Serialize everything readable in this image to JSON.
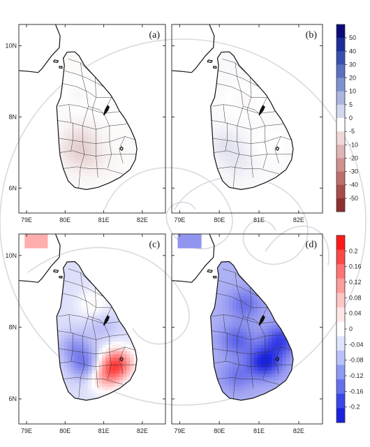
{
  "chart_data": [
    {
      "type": "heatmap",
      "panel_label": "(a)",
      "x_ticks": [
        "79E",
        "80E",
        "81E",
        "82E"
      ],
      "y_ticks": [
        "6N",
        "8N",
        "10N"
      ],
      "xlim": [
        78.8,
        82.6
      ],
      "ylim": [
        5.3,
        10.6
      ],
      "colorbar": "top",
      "pattern": [
        {
          "lon": 80.2,
          "lat": 7.0,
          "value": -6
        },
        {
          "lon": 80.4,
          "lat": 7.4,
          "value": -5
        },
        {
          "lon": 80.6,
          "lat": 6.8,
          "value": -5
        },
        {
          "lon": 80.3,
          "lat": 8.6,
          "value": 3
        },
        {
          "lon": 81.1,
          "lat": 8.2,
          "value": 2
        },
        {
          "lon": 80.0,
          "lat": 10.3,
          "value": -3
        }
      ]
    },
    {
      "type": "heatmap",
      "panel_label": "(b)",
      "x_ticks": [
        "79E",
        "80E",
        "81E",
        "82E"
      ],
      "y_ticks": [
        "6N",
        "8N",
        "10N"
      ],
      "xlim": [
        78.8,
        82.6
      ],
      "ylim": [
        5.3,
        10.6
      ],
      "colorbar": "top",
      "pattern": [
        {
          "lon": 80.1,
          "lat": 7.2,
          "value": 4
        },
        {
          "lon": 80.4,
          "lat": 6.7,
          "value": 3
        },
        {
          "lon": 80.6,
          "lat": 8.4,
          "value": -3
        },
        {
          "lon": 81.2,
          "lat": 7.2,
          "value": -2
        },
        {
          "lon": 79.8,
          "lat": 10.3,
          "value": 4
        }
      ]
    },
    {
      "type": "heatmap",
      "panel_label": "(c)",
      "x_ticks": [
        "79E",
        "80E",
        "81E",
        "82E"
      ],
      "y_ticks": [
        "6N",
        "8N",
        "10N"
      ],
      "xlim": [
        78.8,
        82.6
      ],
      "ylim": [
        5.3,
        10.6
      ],
      "colorbar": "bottom",
      "pattern": [
        {
          "lon": 81.3,
          "lat": 6.95,
          "value": 0.17
        },
        {
          "lon": 81.0,
          "lat": 6.6,
          "value": 0.1
        },
        {
          "lon": 80.5,
          "lat": 6.9,
          "value": -0.09
        },
        {
          "lon": 80.2,
          "lat": 7.4,
          "value": -0.06
        },
        {
          "lon": 80.7,
          "lat": 8.6,
          "value": 0.04
        },
        {
          "lon": 79.2,
          "lat": 10.4,
          "value": 0.09
        },
        {
          "lon": 80.9,
          "lat": 8.0,
          "value": -0.03
        }
      ]
    },
    {
      "type": "heatmap",
      "panel_label": "(d)",
      "x_ticks": [
        "79E",
        "80E",
        "81E",
        "82E"
      ],
      "y_ticks": [
        "6N",
        "8N",
        "10N"
      ],
      "xlim": [
        78.8,
        82.6
      ],
      "ylim": [
        5.3,
        10.6
      ],
      "colorbar": "bottom",
      "pattern": [
        {
          "lon": 81.1,
          "lat": 7.0,
          "value": -0.13
        },
        {
          "lon": 81.5,
          "lat": 7.6,
          "value": -0.1
        },
        {
          "lon": 80.4,
          "lat": 7.6,
          "value": -0.07
        },
        {
          "lon": 80.6,
          "lat": 8.6,
          "value": -0.06
        },
        {
          "lon": 80.4,
          "lat": 6.6,
          "value": -0.05
        },
        {
          "lon": 79.1,
          "lat": 10.4,
          "value": -0.12
        }
      ]
    }
  ],
  "colorbars": [
    {
      "labels": [
        "50",
        "40",
        "30",
        "20",
        "10",
        "5",
        "0",
        "-5",
        "-10",
        "-20",
        "-30",
        "-40",
        "-50"
      ],
      "colors": [
        "#0a0a7a",
        "#1c2d9a",
        "#3a50b0",
        "#5a70c0",
        "#7f92d0",
        "#aab6e0",
        "#d2d8ee",
        "#ffffff",
        "#f0d8d8",
        "#e0b4b4",
        "#d09090",
        "#bf6e6e",
        "#a84c4c",
        "#8e2e2e"
      ]
    },
    {
      "labels": [
        "0.2",
        "0.16",
        "0.12",
        "0.08",
        "0.04",
        "0",
        "-0.04",
        "-0.08",
        "-0.12",
        "-0.16",
        "-0.2"
      ],
      "colors": [
        "#ff1a1a",
        "#ff4848",
        "#ff7474",
        "#ff9c9c",
        "#ffc4c4",
        "#ffe6e6",
        "#ffffff",
        "#e0e4ff",
        "#b9c2fc",
        "#8e9af5",
        "#6470ee",
        "#3a46e8",
        "#1a22e0"
      ]
    }
  ]
}
